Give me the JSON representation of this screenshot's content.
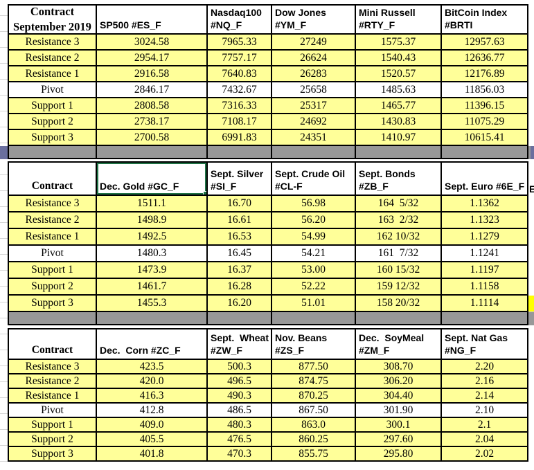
{
  "colors": {
    "row_fill": "#FFFF99",
    "pivot_fill": "#FFFFFF",
    "separator_gray": "#989898",
    "edge_blue": "#6A6F9E",
    "selection_green": "#1F7245",
    "highlight_yellow": "#FFFF00"
  },
  "right_edge": {
    "fragment_text": "E"
  },
  "row_labels": [
    "Resistance 3",
    "Resistance 2",
    "Resistance 1",
    "Pivot",
    "Support 1",
    "Support 2",
    "Support 3"
  ],
  "sections": [
    {
      "id": "index-futures",
      "contract_label_lines": [
        "Contract",
        "September 2019"
      ],
      "separator_after": true,
      "columns": [
        {
          "lines": [
            "SP500 #ES_F"
          ]
        },
        {
          "lines": [
            "Nasdaq100",
            "#NQ_F"
          ]
        },
        {
          "lines": [
            "Dow Jones",
            "#YM_F"
          ]
        },
        {
          "lines": [
            "Mini Russell",
            "#RTY_F"
          ]
        },
        {
          "lines": [
            "BitCoin Index",
            "#BRTI"
          ]
        }
      ],
      "rows": [
        {
          "label": "Resistance 3",
          "values": [
            "3024.58",
            "7965.33",
            "27249",
            "1575.37",
            "12957.63"
          ]
        },
        {
          "label": "Resistance 2",
          "values": [
            "2954.17",
            "7757.17",
            "26624",
            "1540.43",
            "12636.77"
          ]
        },
        {
          "label": "Resistance 1",
          "values": [
            "2916.58",
            "7640.83",
            "26283",
            "1520.57",
            "12176.89"
          ]
        },
        {
          "label": "Pivot",
          "values": [
            "2846.17",
            "7432.67",
            "25658",
            "1485.63",
            "11856.03"
          ]
        },
        {
          "label": "Support 1",
          "values": [
            "2808.58",
            "7316.33",
            "25317",
            "1465.77",
            "11396.15"
          ]
        },
        {
          "label": "Support 2",
          "values": [
            "2738.17",
            "7108.17",
            "24692",
            "1430.83",
            "11075.29"
          ]
        },
        {
          "label": "Support 3",
          "values": [
            "2700.58",
            "6991.83",
            "24351",
            "1410.97",
            "10615.41"
          ]
        }
      ]
    },
    {
      "id": "metals-energy-bonds",
      "contract_label_lines": [
        "Contract"
      ],
      "separator_after": true,
      "selected_column": 0,
      "columns": [
        {
          "lines": [
            "Dec. Gold #GC_F"
          ]
        },
        {
          "lines": [
            "Sept. Silver",
            "#SI_F"
          ]
        },
        {
          "lines": [
            "Sept. Crude Oil",
            "#CL-F"
          ]
        },
        {
          "lines": [
            "Sept. Bonds",
            "#ZB_F"
          ]
        },
        {
          "lines": [
            "Sept. Euro #6E_F"
          ]
        }
      ],
      "rows": [
        {
          "label": "Resistance 3",
          "values": [
            "1511.1",
            "16.70",
            "56.98",
            "164  5/32",
            "1.1362"
          ]
        },
        {
          "label": "Resistance 2",
          "values": [
            "1498.9",
            "16.61",
            "56.20",
            "163  2/32",
            "1.1323"
          ]
        },
        {
          "label": "Resistance 1",
          "values": [
            "1492.5",
            "16.53",
            "54.99",
            "162 10/32",
            "1.1279"
          ]
        },
        {
          "label": "Pivot",
          "values": [
            "1480.3",
            "16.45",
            "54.21",
            "161  7/32",
            "1.1241"
          ]
        },
        {
          "label": "Support 1",
          "values": [
            "1473.9",
            "16.37",
            "53.00",
            "160 15/32",
            "1.1197"
          ]
        },
        {
          "label": "Support 2",
          "values": [
            "1461.7",
            "16.28",
            "52.22",
            "159 12/32",
            "1.1158"
          ]
        },
        {
          "label": "Support 3",
          "values": [
            "1455.3",
            "16.20",
            "51.01",
            "158 20/32",
            "1.1114"
          ]
        }
      ]
    },
    {
      "id": "grains-natgas",
      "contract_label_lines": [
        "Contract"
      ],
      "separator_after": false,
      "columns": [
        {
          "lines": [
            "Dec.  Corn #ZC_F"
          ]
        },
        {
          "lines": [
            "Sept.  Wheat",
            "#ZW_F"
          ]
        },
        {
          "lines": [
            "Nov. Beans #ZS_F"
          ]
        },
        {
          "lines": [
            "Dec.  SoyMeal",
            "#ZM_F"
          ]
        },
        {
          "lines": [
            "Sept. Nat Gas",
            "#NG_F"
          ]
        }
      ],
      "rows": [
        {
          "label": "Resistance 3",
          "values": [
            "423.5",
            "500.3",
            "877.50",
            "308.70",
            "2.20"
          ]
        },
        {
          "label": "Resistance 2",
          "values": [
            "420.0",
            "496.5",
            "874.75",
            "306.20",
            "2.16"
          ]
        },
        {
          "label": "Resistance 1",
          "values": [
            "416.3",
            "490.3",
            "870.25",
            "304.40",
            "2.14"
          ]
        },
        {
          "label": "Pivot",
          "values": [
            "412.8",
            "486.5",
            "867.50",
            "301.90",
            "2.10"
          ]
        },
        {
          "label": "Support 1",
          "values": [
            "409.0",
            "480.3",
            "863.0",
            "300.1",
            "2.1"
          ]
        },
        {
          "label": "Support 2",
          "values": [
            "405.5",
            "476.5",
            "860.25",
            "297.60",
            "2.04"
          ]
        },
        {
          "label": "Support 3",
          "values": [
            "401.8",
            "470.3",
            "855.75",
            "295.80",
            "2.02"
          ]
        }
      ]
    }
  ]
}
